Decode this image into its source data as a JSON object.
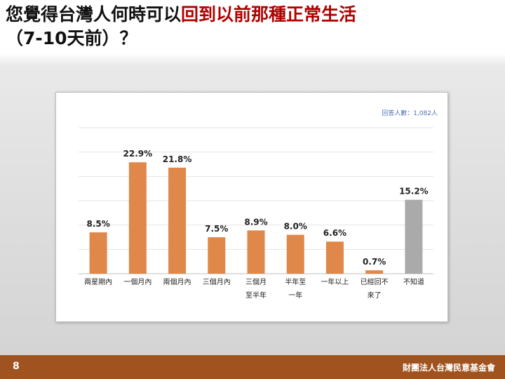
{
  "slide": {
    "title_line1_prefix": "您覺得台灣人何時可以",
    "title_line1_highlight": "回到以前那種正常生活",
    "title_line2": "（7-10天前）？",
    "page_number": "8",
    "organization": "財團法人台灣民意基金會"
  },
  "colors": {
    "bar_primary": "#e0874a",
    "bar_unknown": "#aaaaaa",
    "title_highlight": "#b00000",
    "footer": "#a0531f",
    "note_text": "#4a6fb5"
  },
  "chart_data": {
    "type": "bar",
    "note": "回答人數：1,082人",
    "categories": [
      [
        "兩星期內"
      ],
      [
        "一個月內"
      ],
      [
        "兩個月內"
      ],
      [
        "三個月內"
      ],
      [
        "三個月",
        "至半年"
      ],
      [
        "半年至",
        "一年"
      ],
      [
        "一年以上"
      ],
      [
        "已經回不",
        "來了"
      ],
      [
        "不知道"
      ]
    ],
    "values": [
      8.5,
      22.9,
      21.8,
      7.5,
      8.9,
      8.0,
      6.6,
      0.7,
      15.2
    ],
    "value_labels": [
      "8.5%",
      "22.9%",
      "21.8%",
      "7.5%",
      "8.9%",
      "8.0%",
      "6.6%",
      "0.7%",
      "15.2%"
    ],
    "bar_colors": [
      "bar_primary",
      "bar_primary",
      "bar_primary",
      "bar_primary",
      "bar_primary",
      "bar_primary",
      "bar_primary",
      "bar_primary",
      "bar_unknown"
    ],
    "ylim": [
      0,
      30
    ],
    "grid": true,
    "xlabel": "",
    "ylabel": ""
  }
}
